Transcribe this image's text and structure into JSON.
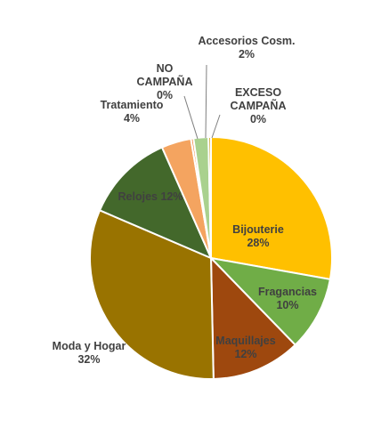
{
  "chart_data": {
    "type": "pie",
    "title": "",
    "legend": "none",
    "slices": [
      {
        "name": "Bijouterie",
        "value": 28,
        "label": "28%",
        "color": "#FFC000"
      },
      {
        "name": "Fragancias",
        "value": 10,
        "label": "10%",
        "color": "#70AD47"
      },
      {
        "name": "Maquillajes",
        "value": 12,
        "label": "12%",
        "color": "#9E480E"
      },
      {
        "name": "Moda y Hogar",
        "value": 32,
        "label": "32%",
        "color": "#997300"
      },
      {
        "name": "Relojes",
        "value": 12,
        "label": "12%",
        "color": "#43682B"
      },
      {
        "name": "Tratamiento",
        "value": 4,
        "label": "4%",
        "color": "#F4A460"
      },
      {
        "name": "NO CAMPAÑA",
        "value": 0,
        "label": "0%",
        "color": "#ED7D31"
      },
      {
        "name": "Accesorios Cosm.",
        "value": 2,
        "label": "2%",
        "color": "#A9D18E"
      },
      {
        "name": "EXCESO CAMPAÑA",
        "value": 0,
        "label": "0%",
        "color": "#C9A227"
      }
    ]
  }
}
